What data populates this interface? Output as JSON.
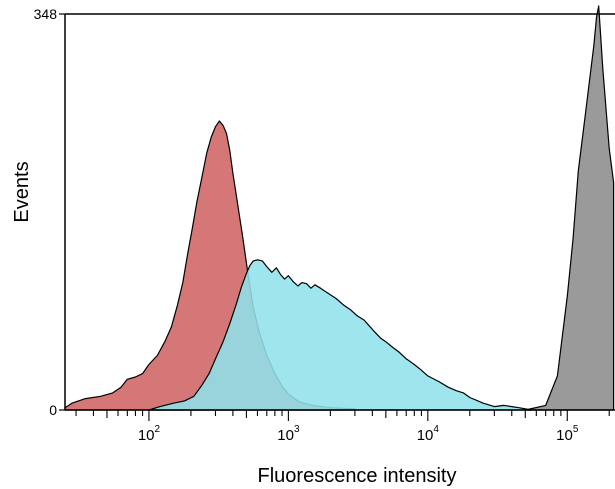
{
  "chart_data": {
    "type": "area",
    "xlabel": "Fluorescence intensity",
    "ylabel": "Events",
    "x_scale": "log",
    "xlim": [
      25,
      220000
    ],
    "ylim": [
      0,
      348
    ],
    "y_ticks": [
      0,
      348
    ],
    "x_ticks": [
      {
        "value": 100,
        "base": "10",
        "exp": "2"
      },
      {
        "value": 1000,
        "base": "10",
        "exp": "3"
      },
      {
        "value": 10000,
        "base": "10",
        "exp": "4"
      },
      {
        "value": 100000,
        "base": "10",
        "exp": "5"
      }
    ],
    "series": [
      {
        "color": "#d06464",
        "points": [
          [
            25,
            2
          ],
          [
            28,
            6
          ],
          [
            35,
            10
          ],
          [
            45,
            12
          ],
          [
            55,
            15
          ],
          [
            63,
            20
          ],
          [
            70,
            27
          ],
          [
            80,
            29
          ],
          [
            90,
            32
          ],
          [
            100,
            40
          ],
          [
            115,
            48
          ],
          [
            130,
            60
          ],
          [
            145,
            73
          ],
          [
            160,
            92
          ],
          [
            175,
            112
          ],
          [
            190,
            138
          ],
          [
            205,
            160
          ],
          [
            220,
            182
          ],
          [
            240,
            205
          ],
          [
            260,
            226
          ],
          [
            280,
            240
          ],
          [
            300,
            249
          ],
          [
            320,
            254
          ],
          [
            340,
            250
          ],
          [
            360,
            243
          ],
          [
            380,
            228
          ],
          [
            400,
            208
          ],
          [
            430,
            183
          ],
          [
            470,
            152
          ],
          [
            510,
            122
          ],
          [
            560,
            90
          ],
          [
            620,
            68
          ],
          [
            700,
            48
          ],
          [
            800,
            32
          ],
          [
            900,
            21
          ],
          [
            1000,
            14
          ],
          [
            1200,
            7
          ],
          [
            1500,
            4
          ],
          [
            2000,
            2
          ],
          [
            3000,
            1
          ]
        ]
      },
      {
        "color": "#91e1ea",
        "points": [
          [
            100,
            0
          ],
          [
            120,
            3
          ],
          [
            150,
            6
          ],
          [
            180,
            8
          ],
          [
            210,
            12
          ],
          [
            240,
            22
          ],
          [
            270,
            32
          ],
          [
            300,
            45
          ],
          [
            340,
            60
          ],
          [
            380,
            76
          ],
          [
            420,
            92
          ],
          [
            460,
            108
          ],
          [
            500,
            120
          ],
          [
            530,
            127
          ],
          [
            560,
            131
          ],
          [
            600,
            132
          ],
          [
            650,
            131
          ],
          [
            700,
            126
          ],
          [
            760,
            121
          ],
          [
            820,
            125
          ],
          [
            880,
            119
          ],
          [
            940,
            115
          ],
          [
            1000,
            118
          ],
          [
            1080,
            113
          ],
          [
            1170,
            109
          ],
          [
            1250,
            112
          ],
          [
            1350,
            111
          ],
          [
            1450,
            107
          ],
          [
            1550,
            110
          ],
          [
            1700,
            107
          ],
          [
            1900,
            103
          ],
          [
            2200,
            98
          ],
          [
            2500,
            92
          ],
          [
            2800,
            88
          ],
          [
            3100,
            83
          ],
          [
            3500,
            79
          ],
          [
            3800,
            74
          ],
          [
            4200,
            68
          ],
          [
            4600,
            63
          ],
          [
            5000,
            60
          ],
          [
            5600,
            55
          ],
          [
            6200,
            51
          ],
          [
            7000,
            45
          ],
          [
            8000,
            40
          ],
          [
            9000,
            35
          ],
          [
            10000,
            30
          ],
          [
            12000,
            25
          ],
          [
            14000,
            20
          ],
          [
            16000,
            17
          ],
          [
            18000,
            15
          ],
          [
            20000,
            11
          ],
          [
            25000,
            6
          ],
          [
            30000,
            3
          ],
          [
            35000,
            4
          ],
          [
            40000,
            3
          ],
          [
            45000,
            2
          ],
          [
            50000,
            1
          ],
          [
            55000,
            0
          ]
        ]
      },
      {
        "color": "#8c8c8c",
        "points": [
          [
            50000,
            0
          ],
          [
            70000,
            4
          ],
          [
            85000,
            30
          ],
          [
            100000,
            100
          ],
          [
            110000,
            150
          ],
          [
            120000,
            210
          ],
          [
            135000,
            260
          ],
          [
            148000,
            300
          ],
          [
            155000,
            320
          ],
          [
            162000,
            345
          ],
          [
            168000,
            355
          ],
          [
            180000,
            300
          ],
          [
            200000,
            230
          ],
          [
            215000,
            200
          ]
        ]
      }
    ]
  }
}
